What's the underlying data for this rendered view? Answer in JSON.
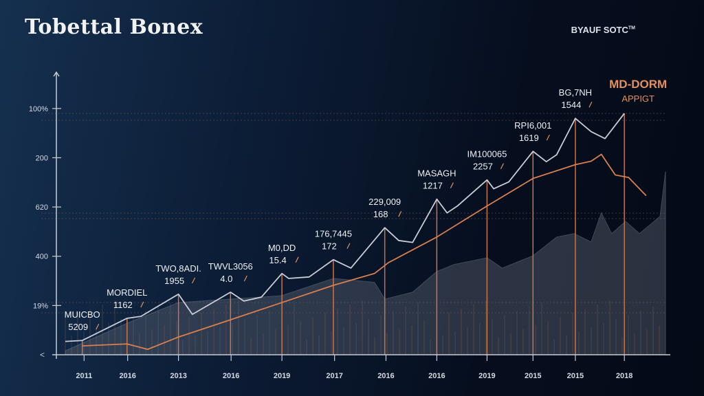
{
  "header": {
    "title": "Tobettal Bonex",
    "brand": "BYAUF SOTC",
    "brand_mark": "TM"
  },
  "chart_data": {
    "type": "line",
    "title": "Tobettal Bonex",
    "xlabel": "",
    "ylabel": "",
    "x_range": [
      0,
      100
    ],
    "y_range": [
      0,
      5.5
    ],
    "x_ticks": [
      {
        "x": 3.9,
        "label": "2011"
      },
      {
        "x": 11.1,
        "label": "2016"
      },
      {
        "x": 19.5,
        "label": "2013"
      },
      {
        "x": 28.2,
        "label": "2016"
      },
      {
        "x": 36.6,
        "label": "2019"
      },
      {
        "x": 45.3,
        "label": "2017"
      },
      {
        "x": 53.8,
        "label": "2016"
      },
      {
        "x": 62.2,
        "label": "2016"
      },
      {
        "x": 70.5,
        "label": "2019"
      },
      {
        "x": 78.1,
        "label": "2015"
      },
      {
        "x": 85.1,
        "label": "2015"
      },
      {
        "x": 93.2,
        "label": "2018"
      }
    ],
    "y_ticks": [
      {
        "y": 1,
        "label": "19%"
      },
      {
        "y": 2,
        "label": "400"
      },
      {
        "y": 3,
        "label": "620"
      },
      {
        "y": 4,
        "label": "200"
      },
      {
        "y": 5,
        "label": "100%"
      }
    ],
    "y_axis_end_label": "<",
    "series": [
      {
        "name": "white-line",
        "color": "#c9cdd6",
        "points": [
          [
            0.8,
            0.27
          ],
          [
            3.6,
            0.29
          ],
          [
            11.0,
            0.74
          ],
          [
            13.3,
            0.78
          ],
          [
            19.5,
            1.23
          ],
          [
            21.8,
            0.82
          ],
          [
            28.1,
            1.27
          ],
          [
            30.3,
            1.09
          ],
          [
            33.2,
            1.17
          ],
          [
            36.6,
            1.65
          ],
          [
            37.7,
            1.55
          ],
          [
            41.1,
            1.58
          ],
          [
            45.1,
            1.93
          ],
          [
            48.0,
            1.76
          ],
          [
            53.6,
            2.58
          ],
          [
            55.9,
            2.32
          ],
          [
            58.2,
            2.28
          ],
          [
            62.2,
            3.16
          ],
          [
            63.9,
            2.88
          ],
          [
            65.6,
            3.02
          ],
          [
            70.5,
            3.55
          ],
          [
            71.6,
            3.37
          ],
          [
            74.1,
            3.51
          ],
          [
            78.1,
            4.13
          ],
          [
            80.3,
            3.92
          ],
          [
            82.0,
            4.06
          ],
          [
            85.1,
            4.8
          ],
          [
            87.7,
            4.53
          ],
          [
            90.0,
            4.39
          ],
          [
            93.2,
            4.9
          ]
        ]
      },
      {
        "name": "orange-line",
        "color": "#d9804f",
        "points": [
          [
            3.6,
            0.18
          ],
          [
            11.0,
            0.22
          ],
          [
            14.4,
            0.11
          ],
          [
            19.5,
            0.36
          ],
          [
            28.1,
            0.71
          ],
          [
            36.6,
            1.06
          ],
          [
            45.1,
            1.41
          ],
          [
            51.9,
            1.65
          ],
          [
            54.2,
            1.87
          ],
          [
            62.2,
            2.39
          ],
          [
            70.5,
            3.02
          ],
          [
            78.1,
            3.58
          ],
          [
            85.1,
            3.86
          ],
          [
            87.7,
            3.93
          ],
          [
            89.4,
            4.07
          ],
          [
            91.7,
            3.65
          ],
          [
            93.9,
            3.6
          ],
          [
            96.8,
            3.23
          ]
        ]
      },
      {
        "name": "grey-area",
        "color": "#5a6170",
        "points": [
          [
            0.8,
            0.08
          ],
          [
            11.0,
            0.64
          ],
          [
            19.5,
            1.06
          ],
          [
            33.2,
            1.17
          ],
          [
            36.6,
            1.2
          ],
          [
            45.1,
            1.55
          ],
          [
            51.9,
            1.47
          ],
          [
            53.6,
            1.13
          ],
          [
            58.2,
            1.27
          ],
          [
            62.2,
            1.69
          ],
          [
            65.0,
            1.83
          ],
          [
            70.5,
            1.97
          ],
          [
            73.0,
            1.76
          ],
          [
            78.1,
            2.01
          ],
          [
            82.0,
            2.39
          ],
          [
            84.9,
            2.46
          ],
          [
            87.7,
            2.29
          ],
          [
            89.4,
            2.88
          ],
          [
            91.1,
            2.46
          ],
          [
            93.4,
            2.71
          ],
          [
            95.7,
            2.46
          ],
          [
            99.1,
            2.81
          ],
          [
            100,
            3.72
          ]
        ]
      }
    ],
    "annotations": [
      {
        "x": 3.6,
        "y": 0.29,
        "line1": "MUICBO",
        "line2": "5209"
      },
      {
        "x": 11.0,
        "y": 0.74,
        "line1": "MORDIEL",
        "line2": "1162"
      },
      {
        "x": 19.5,
        "y": 1.23,
        "line1": "TWO,8ADI.",
        "line2": "1955"
      },
      {
        "x": 28.1,
        "y": 1.27,
        "line1": "TWVL3056",
        "line2": "4.0"
      },
      {
        "x": 36.6,
        "y": 1.65,
        "line1": "M0,DD",
        "line2": "15.4"
      },
      {
        "x": 45.1,
        "y": 1.93,
        "line1": "176,7445",
        "line2": "172"
      },
      {
        "x": 53.6,
        "y": 2.58,
        "line1": "229,009",
        "line2": "168"
      },
      {
        "x": 62.2,
        "y": 3.16,
        "line1": "MASAGH",
        "line2": "1217"
      },
      {
        "x": 70.5,
        "y": 3.55,
        "line1": "IM100065",
        "line2": "2257"
      },
      {
        "x": 78.1,
        "y": 4.13,
        "line1": "RPI6,001",
        "line2": "1619"
      },
      {
        "x": 85.1,
        "y": 4.8,
        "line1": "BG,7NH",
        "line2": "1544"
      },
      {
        "x": 93.2,
        "y": 4.9,
        "line1": "MD-DORM",
        "line2": "APPIGT",
        "highlight": true
      }
    ],
    "colors": {
      "accent": "#e3905c",
      "drop_line": "#c8744a",
      "grid": "#7a5a52"
    }
  }
}
